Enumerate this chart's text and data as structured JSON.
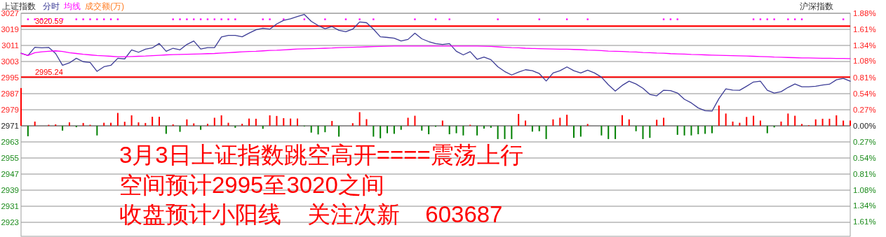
{
  "chart_data": {
    "type": "line",
    "title": "上证指数",
    "legend": "top left",
    "grid": "y",
    "categories": [
      null,
      null,
      null,
      null,
      null,
      null,
      null,
      null,
      null,
      null,
      null,
      null,
      null,
      null,
      null,
      null,
      null,
      null,
      null,
      null,
      null,
      null,
      null,
      null,
      null,
      null,
      null,
      null,
      null,
      null,
      null,
      null,
      null,
      null,
      null,
      null,
      null,
      null,
      null,
      null,
      null,
      null,
      null,
      null,
      null,
      null,
      null,
      null,
      null,
      null,
      null,
      null,
      null,
      null,
      null,
      null,
      null,
      null,
      null,
      null,
      null,
      null,
      null,
      null,
      null,
      null,
      null,
      null,
      null,
      null,
      null,
      null,
      null,
      null,
      null,
      null,
      null,
      null,
      null,
      null,
      null,
      null,
      null,
      null,
      null,
      null,
      null,
      null,
      null,
      null,
      null,
      null,
      null,
      null,
      null,
      null,
      null,
      null,
      null,
      null,
      null,
      null,
      null,
      null,
      null,
      null,
      null,
      null,
      null,
      null,
      null,
      null,
      null,
      null,
      null,
      null,
      null,
      null,
      null,
      null,
      null
    ],
    "series": [
      {
        "type": "bar",
        "base": [
          2971,
          2971,
          2971,
          null,
          2971,
          2971,
          2971,
          2971,
          2971,
          2971,
          2971,
          2971,
          2971,
          2971,
          2971,
          2971,
          2971,
          2971,
          2971,
          2971,
          2971,
          2971,
          2971,
          2971,
          2971,
          2971,
          2971,
          2971,
          2971,
          2971,
          2971,
          2971,
          2971,
          2971,
          2971,
          2971,
          2971,
          2971,
          2971,
          2971,
          2971,
          2971,
          2971,
          2971,
          2971,
          2971,
          2971,
          null,
          2971,
          2971,
          2971,
          2971,
          2971,
          2971,
          2971,
          2971,
          2971,
          2971,
          2971,
          2971,
          2971,
          2971,
          2971,
          2971,
          2971,
          2971,
          2971,
          2971,
          2971,
          2971,
          2971,
          2971,
          2971,
          2971,
          2971,
          2971,
          2971,
          2971,
          2971,
          2971,
          2971,
          2971,
          2971,
          null,
          2971,
          2971,
          2971,
          2971,
          2971,
          2971,
          2971,
          2971,
          2971,
          2971,
          null,
          2971,
          2971,
          2971,
          2971,
          2971,
          2971,
          2971,
          2971,
          2971,
          2971,
          2971,
          2971,
          2971,
          2971,
          2971,
          2971,
          2971,
          2971,
          2971,
          2971,
          2971,
          2971,
          2971,
          2971,
          2971,
          2971
        ],
        "values": [
          18.8,
          -5.2,
          2.1,
          null,
          0.5,
          0.7,
          -2.4,
          1.7,
          -0.7,
          1.4,
          0.5,
          -4.8,
          1.5,
          1.5,
          6.4,
          2,
          5.2,
          1.7,
          1.4,
          4.5,
          4.5,
          -4,
          0.7,
          -3,
          3.2,
          1.2,
          -2,
          1,
          4,
          5.2,
          1.5,
          -1,
          1,
          3.6,
          3.5,
          -1.5,
          5.2,
          4.9,
          3.8,
          3.6,
          3.6,
          -0.3,
          -3.4,
          -4.3,
          -3.2,
          2.4,
          -5.4,
          null,
          1.3,
          6.8,
          3.3,
          -5.4,
          -6.2,
          -3.7,
          -4,
          -2,
          4,
          5,
          -2.4,
          -4.2,
          -0.5,
          2.6,
          -4.2,
          -3.7,
          -4.8,
          0.5,
          -4.8,
          -1.4,
          -1,
          -6.6,
          -6.6,
          -6.6,
          5.9,
          2.6,
          -2.9,
          -2.7,
          -6.6,
          3.2,
          4,
          5.5,
          -6,
          -5.4,
          0.9,
          null,
          -4.8,
          -6.6,
          -6.6,
          5.3,
          3.2,
          -2.7,
          -6.6,
          -6,
          3,
          4,
          null,
          -4.5,
          -4.8,
          -4.8,
          -4.2,
          -4,
          -3.7,
          10.1,
          6.1,
          2.1,
          1.5,
          4.4,
          5,
          2.6,
          -3.7,
          -0.8,
          2.1,
          6.1,
          5,
          0.9,
          0.3,
          3.2,
          3.5,
          3.5,
          5.2,
          2.6,
          2.6
        ],
        "colors": [
          "#ff0000",
          "#008000",
          "#ff0000",
          null,
          "#ff0000",
          "#ff0000",
          "#008000",
          "#ff0000",
          "#008000",
          "#ff0000",
          "#ff0000",
          "#008000",
          "#ff0000",
          "#ff0000",
          "#ff0000",
          "#ff0000",
          "#ff0000",
          "#ff0000",
          "#ff0000",
          "#ff0000",
          "#ff0000",
          "#008000",
          "#ff0000",
          "#008000",
          "#ff0000",
          "#ff0000",
          "#008000",
          "#ff0000",
          "#ff0000",
          "#ff0000",
          "#ff0000",
          "#008000",
          "#ff0000",
          "#ff0000",
          "#ff0000",
          "#008000",
          "#ff0000",
          "#ff0000",
          "#ff0000",
          "#ff0000",
          "#ff0000",
          "#008000",
          "#008000",
          "#008000",
          "#008000",
          "#ff0000",
          "#008000",
          null,
          "#ff0000",
          "#ff0000",
          "#ff0000",
          "#008000",
          "#008000",
          "#008000",
          "#008000",
          "#008000",
          "#ff0000",
          "#ff0000",
          "#008000",
          "#008000",
          "#008000",
          "#ff0000",
          "#008000",
          "#008000",
          "#008000",
          "#ff0000",
          "#008000",
          "#008000",
          "#008000",
          "#008000",
          "#008000",
          "#008000",
          "#ff0000",
          "#ff0000",
          "#008000",
          "#008000",
          "#008000",
          "#ff0000",
          "#ff0000",
          "#ff0000",
          "#008000",
          "#008000",
          "#ff0000",
          null,
          "#008000",
          "#008000",
          "#008000",
          "#ff0000",
          "#ff0000",
          "#008000",
          "#008000",
          "#008000",
          "#ff0000",
          "#ff0000",
          null,
          "#008000",
          "#008000",
          "#008000",
          "#008000",
          "#008000",
          "#008000",
          "#ff0000",
          "#ff0000",
          "#ff0000",
          "#ff0000",
          "#ff0000",
          "#ff0000",
          "#ff0000",
          "#008000",
          "#008000",
          "#ff0000",
          "#ff0000",
          "#ff0000",
          "#ff0000",
          "#ff0000",
          "#ff0000",
          "#ff0000",
          "#ff0000",
          "#ff0000",
          "#ff0000",
          "#ff0000"
        ]
      },
      {
        "type": "scatter",
        "marker": "square",
        "color": "#ff00ff",
        "values": [
          null,
          3024,
          3024,
          3024,
          3024,
          3024,
          3024,
          null,
          3024,
          3024,
          3024,
          3024,
          3024,
          3024,
          3024,
          null,
          null,
          null,
          null,
          null,
          null,
          null,
          3024,
          3024,
          3024,
          3024,
          3024,
          3024,
          3024,
          3024,
          3024,
          3024,
          null,
          null,
          null,
          3024,
          3024,
          null,
          3024,
          null,
          null,
          3024,
          null,
          null,
          3024,
          null,
          null,
          3024,
          null,
          3024,
          null,
          3024,
          null,
          null,
          null,
          null,
          null,
          3024,
          null,
          null,
          3024,
          null,
          3024,
          null,
          null,
          null,
          null,
          null,
          null,
          3024,
          null,
          null,
          null,
          null,
          null,
          3024,
          null,
          null,
          null,
          3024,
          null,
          null,
          3024,
          null,
          null,
          null,
          null,
          null,
          null,
          null,
          null,
          null,
          null,
          3024,
          3024,
          3024,
          null,
          null,
          null,
          null,
          null,
          null,
          null,
          null,
          null,
          null,
          3024,
          3024,
          3024,
          3024,
          null,
          3024,
          3024,
          3024,
          null,
          null,
          null,
          null,
          null,
          3024,
          null
        ]
      },
      {
        "name": "分时",
        "color": "#3c3c96",
        "values": [
          3007.1,
          3006.0,
          3010.1,
          3009.8,
          3010.0,
          3007.0,
          3001.1,
          3002.3,
          3004.6,
          3002.9,
          3002.5,
          2998.1,
          3000.4,
          3001.1,
          3004.6,
          3004.3,
          3008.8,
          3007.6,
          3009.1,
          3009.8,
          3012.0,
          3008.1,
          3009.6,
          3008.8,
          3011.5,
          3013.2,
          3009.2,
          3009.9,
          3009.9,
          3015.2,
          3016.0,
          3016.0,
          3015.3,
          3017.1,
          3018.8,
          3019.6,
          3019.1,
          3021.7,
          3023.5,
          3024.3,
          3025.4,
          3026.4,
          3023.0,
          3020.9,
          3019.3,
          3020.4,
          3018.5,
          3017.8,
          3019.1,
          3022.7,
          3022.3,
          3019.1,
          3015.3,
          3015.0,
          3014.6,
          3013.2,
          3014.0,
          3017.1,
          3014.3,
          3012.9,
          3011.9,
          3011.5,
          3011.9,
          3008.1,
          3006.3,
          3007.9,
          3004.1,
          3005.2,
          3003.9,
          3000.4,
          2998.0,
          2996.3,
          2997.7,
          2998.9,
          2998.4,
          2997.0,
          2993.3,
          2997.3,
          2998.4,
          3000.3,
          2998.4,
          2997.3,
          2998.7,
          2997.3,
          2995.2,
          2991.4,
          2988.3,
          2991.1,
          2993.2,
          2991.8,
          2989.7,
          2986.6,
          2985.9,
          2988.7,
          2988.5,
          2987.3,
          2984.2,
          2982.4,
          2979.9,
          2978.5,
          2978.3,
          2984.5,
          2989.4,
          2988.8,
          2988.7,
          2990.7,
          2992.8,
          2993.2,
          2988.7,
          2987.3,
          2988.0,
          2990.1,
          2991.8,
          2990.4,
          2990.4,
          2990.7,
          2991.3,
          2991.7,
          2993.9,
          2994.6,
          2993.2
        ]
      },
      {
        "name": "均线",
        "color": "#ff00ff",
        "values": [
          3007.0,
          3006.0,
          3007.4,
          3007.8,
          3008.1,
          3008.3,
          3008.0,
          3007.4,
          3007.0,
          3006.6,
          3006.3,
          3006.0,
          3005.8,
          3005.6,
          3005.4,
          3005.4,
          3005.5,
          3005.6,
          3005.7,
          3005.9,
          3006.1,
          3006.3,
          3006.4,
          3006.5,
          3006.6,
          3006.7,
          3006.8,
          3006.9,
          3007.0,
          3007.2,
          3007.4,
          3007.6,
          3007.8,
          3008.0,
          3008.1,
          3008.3,
          3008.5,
          3008.6,
          3008.8,
          3009.0,
          3009.2,
          3009.3,
          3009.4,
          3009.5,
          3009.6,
          3009.7,
          3009.9,
          3010.0,
          3010.1,
          3010.2,
          3010.3,
          3010.4,
          3010.5,
          3010.6,
          3010.7,
          3010.7,
          3010.7,
          3010.7,
          3010.7,
          3010.7,
          3010.7,
          3010.7,
          3010.7,
          3010.7,
          3010.7,
          3010.7,
          3010.7,
          3010.6,
          3010.5,
          3010.3,
          3010.1,
          3009.9,
          3009.8,
          3009.6,
          3009.5,
          3009.4,
          3009.3,
          3009.2,
          3009.1,
          3009.1,
          3009.0,
          3008.9,
          3008.7,
          3008.6,
          3008.4,
          3008.2,
          3008.1,
          3008.0,
          3007.8,
          3007.7,
          3007.5,
          3007.4,
          3007.2,
          3007.1,
          3006.9,
          3006.8,
          3006.7,
          3006.5,
          3006.4,
          3006.3,
          3006.2,
          3006.1,
          3006.0,
          3005.9,
          3005.8,
          3005.7,
          3005.6,
          3005.5,
          3005.4,
          3005.2,
          3005.1,
          3005.0,
          3004.9,
          3004.8,
          3004.8,
          3004.7,
          3004.6,
          3004.6,
          3004.5,
          3004.5,
          3004.4
        ]
      }
    ],
    "ylim": [
      2916,
      3027
    ],
    "yticks": [
      3027,
      3019,
      3011,
      3003,
      2995,
      2987,
      2979,
      2971,
      2963,
      2955,
      2947,
      2939,
      2931,
      2923
    ],
    "y2lim": [
      -1.85,
      1.88
    ],
    "y2ticks": [
      {
        "value": 1.88,
        "label": "1.88%"
      },
      {
        "value": 1.61,
        "label": "1.61%"
      },
      {
        "value": 1.34,
        "label": "1.34%"
      },
      {
        "value": 1.08,
        "label": "1.08%"
      },
      {
        "value": 0.81,
        "label": "0.81%"
      },
      {
        "value": 0.54,
        "label": "0.54%"
      },
      {
        "value": 0.27,
        "label": "0.27%"
      },
      {
        "value": 0,
        "label": "0.00%"
      },
      {
        "value": -0.27,
        "label": "0.27%"
      },
      {
        "value": -0.54,
        "label": "0.54%"
      },
      {
        "value": -0.81,
        "label": "0.81%"
      },
      {
        "value": -1.08,
        "label": "1.08%"
      },
      {
        "value": -1.34,
        "label": "1.34%"
      },
      {
        "value": -1.61,
        "label": "1.61%"
      }
    ],
    "ref_lines": [
      {
        "axis": "y",
        "value": 3020.59,
        "label": "3020.59",
        "color": "#ff0000"
      },
      {
        "axis": "y",
        "value": 2995.24,
        "label": "2995.24",
        "color": "#ff0000"
      },
      {
        "axis": "y",
        "value": 2971,
        "color": "#808080"
      }
    ],
    "annotations": [
      "成交额(万)",
      "沪深指数",
      "3月3日上证指数跳空高开====震荡上行",
      "空间预计2995至3020之间",
      "收盘预计小阳线    关注次新    603687"
    ]
  }
}
